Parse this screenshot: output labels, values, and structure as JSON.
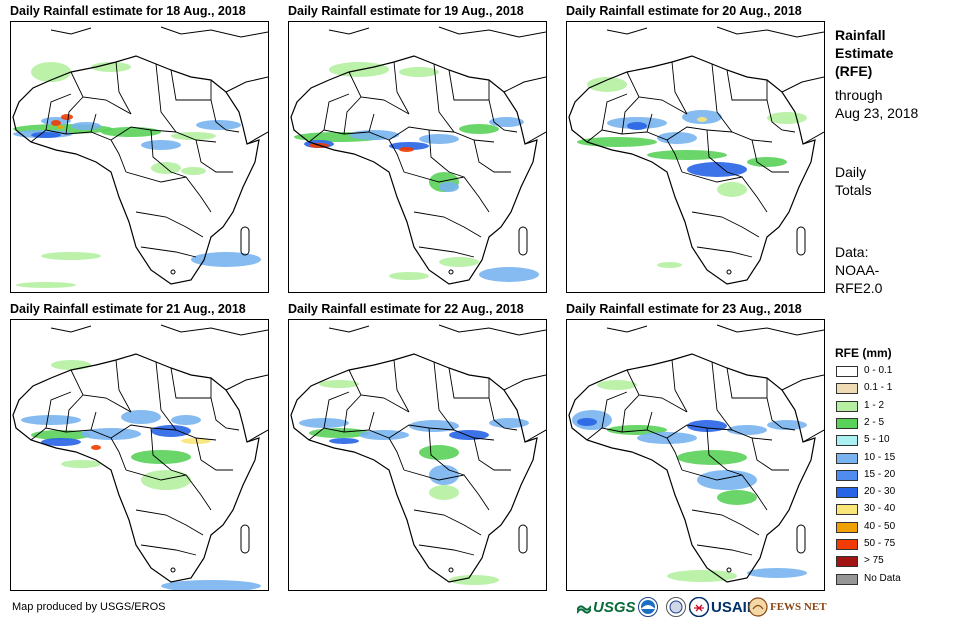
{
  "panels": [
    {
      "title": "Daily Rainfall estimate for 18 Aug., 2018"
    },
    {
      "title": "Daily Rainfall estimate for 19 Aug., 2018"
    },
    {
      "title": "Daily Rainfall estimate for 20 Aug., 2018"
    },
    {
      "title": "Daily Rainfall estimate for 21 Aug., 2018"
    },
    {
      "title": "Daily Rainfall estimate for 22 Aug., 2018"
    },
    {
      "title": "Daily Rainfall estimate for 23 Aug., 2018"
    }
  ],
  "side_text": {
    "heading": [
      "Rainfall",
      "Estimate",
      "(RFE)"
    ],
    "through": [
      "through",
      "Aug 23, 2018"
    ],
    "totals": [
      "Daily",
      "Totals"
    ],
    "data": [
      "Data:",
      "NOAA-",
      "RFE2.0"
    ]
  },
  "legend": {
    "title": "RFE (mm)",
    "items": [
      {
        "label": "0 - 0.1",
        "color": "#ffffff"
      },
      {
        "label": "0.1 - 1",
        "color": "#f0dcb4"
      },
      {
        "label": "1 - 2",
        "color": "#b4f0a0"
      },
      {
        "label": "2 - 5",
        "color": "#5ad25a"
      },
      {
        "label": "5 - 10",
        "color": "#aaf0f0"
      },
      {
        "label": "10 - 15",
        "color": "#78b4f0"
      },
      {
        "label": "15 - 20",
        "color": "#508cf0"
      },
      {
        "label": "20 - 30",
        "color": "#2864e6"
      },
      {
        "label": "30 - 40",
        "color": "#fae678"
      },
      {
        "label": "40 - 50",
        "color": "#f0a000"
      },
      {
        "label": "50 - 75",
        "color": "#f03c00"
      },
      {
        "label": "> 75",
        "color": "#a01414"
      },
      {
        "label": "No Data",
        "color": "#969696"
      }
    ]
  },
  "credit": "Map produced by USGS/EROS",
  "logos": {
    "usgs": "USGS",
    "usaid": "USAID",
    "fewsnet": "FEWS NET"
  }
}
